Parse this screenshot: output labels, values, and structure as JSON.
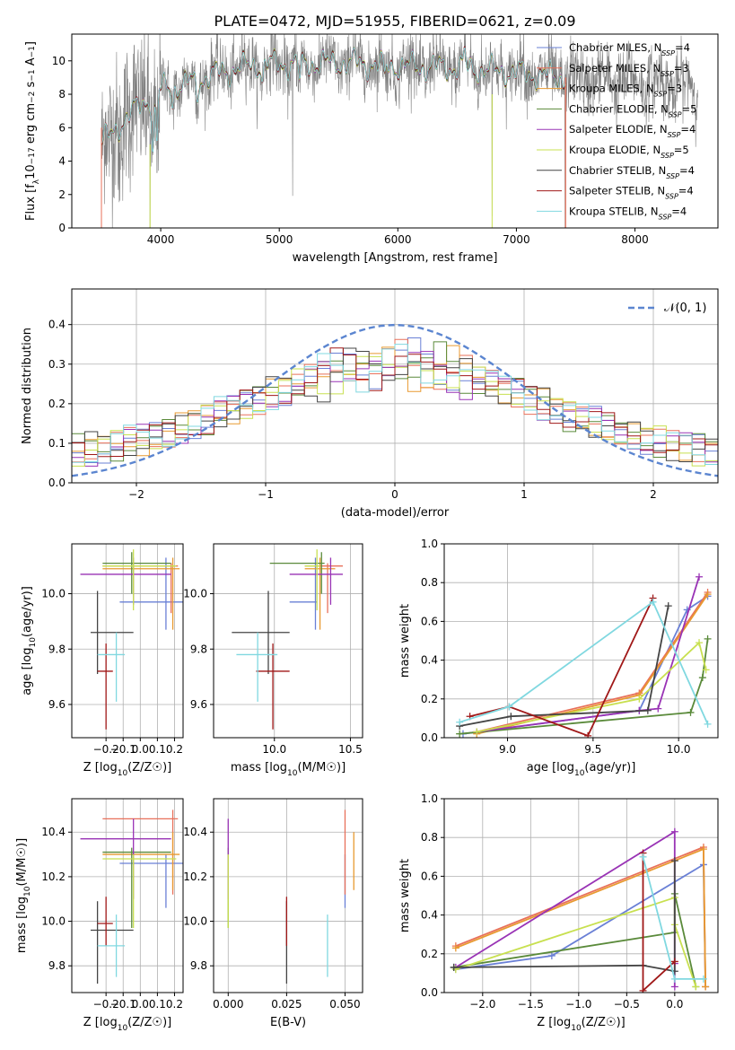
{
  "title": "PLATE=0472, MJD=51955, FIBERID=0621, z=0.09",
  "colors": {
    "Chabrier MILES": "#6a80d6",
    "Salpeter MILES": "#e8705a",
    "Kroupa MILES": "#e89a30",
    "Chabrier ELODIE": "#5a8a3a",
    "Salpeter ELODIE": "#9933b5",
    "Kroupa ELODIE": "#c8e050",
    "Chabrier STELIB": "#444444",
    "Salpeter STELIB": "#a01818",
    "Kroupa STELIB": "#80d8e0",
    "data": "#808080",
    "gauss": "#5b85d0"
  },
  "chart_data": [
    {
      "type": "line",
      "xlabel": "wavelength [Angstrom, rest frame]",
      "ylabel": "Flux [fλ10⁻¹⁷ erg cm⁻² s⁻¹ A⁻¹]",
      "xlim": [
        3250,
        8700
      ],
      "ylim": [
        0,
        11.6
      ],
      "xticks": [
        4000,
        5000,
        6000,
        7000,
        8000
      ],
      "yticks": [
        0,
        2,
        4,
        6,
        8,
        10
      ],
      "legend": [
        {
          "name": "Chabrier MILES",
          "text": "Chabrier MILES, N",
          "sub": "SSP",
          "n": "=4"
        },
        {
          "name": "Salpeter MILES",
          "text": "Salpeter MILES, N",
          "sub": "SSP",
          "n": "=3"
        },
        {
          "name": "Kroupa MILES",
          "text": "Kroupa MILES, N",
          "sub": "SSP",
          "n": "=3"
        },
        {
          "name": "Chabrier ELODIE",
          "text": "Chabrier ELODIE, N",
          "sub": "SSP",
          "n": "=5"
        },
        {
          "name": "Salpeter ELODIE",
          "text": "Salpeter ELODIE, N",
          "sub": "SSP",
          "n": "=4"
        },
        {
          "name": "Kroupa ELODIE",
          "text": "Kroupa ELODIE, N",
          "sub": "SSP",
          "n": "=5"
        },
        {
          "name": "Chabrier STELIB",
          "text": "Chabrier STELIB, N",
          "sub": "SSP",
          "n": "=4"
        },
        {
          "name": "Salpeter STELIB",
          "text": "Salpeter STELIB, N",
          "sub": "SSP",
          "n": "=4"
        },
        {
          "name": "Kroupa STELIB",
          "text": "Kroupa STELIB, N",
          "sub": "SSP",
          "n": "=4"
        }
      ],
      "legend_loc": "right",
      "data_range": [
        3500,
        8530
      ],
      "model_range": [
        3500,
        7420
      ],
      "continuum": [
        [
          3500,
          5.0
        ],
        [
          3700,
          6.5
        ],
        [
          3900,
          7.8
        ],
        [
          4000,
          8.3
        ],
        [
          4200,
          8.6
        ],
        [
          4500,
          9.3
        ],
        [
          4800,
          9.8
        ],
        [
          5000,
          9.8
        ],
        [
          5500,
          9.9
        ],
        [
          6000,
          9.7
        ],
        [
          6500,
          9.6
        ],
        [
          7000,
          9.3
        ],
        [
          7400,
          9.0
        ],
        [
          8000,
          8.8
        ],
        [
          8500,
          8.5
        ]
      ],
      "absorptions": [
        [
          3934,
          4.0
        ],
        [
          3968,
          3.5
        ],
        [
          4101,
          1.0
        ],
        [
          4305,
          1.2
        ],
        [
          4861,
          1.0
        ],
        [
          5175,
          1.3
        ],
        [
          5890,
          1.0
        ],
        [
          6563,
          -0.8
        ]
      ],
      "spikes": [
        [
          3500,
          0
        ],
        [
          3550,
          -4
        ],
        [
          3650,
          -5
        ],
        [
          3910,
          -8
        ],
        [
          5112,
          -9.8
        ],
        [
          6795,
          -9.6
        ],
        [
          7410,
          -9.5
        ]
      ]
    },
    {
      "type": "histogram",
      "xlabel": "(data-model)/error",
      "ylabel": "Normed distribution",
      "xlim": [
        -2.5,
        2.5
      ],
      "ylim": [
        0,
        0.49
      ],
      "xticks": [
        -2,
        -1,
        0,
        1,
        2
      ],
      "yticks": [
        0.0,
        0.1,
        0.2,
        0.3,
        0.4
      ],
      "bin_width": 0.1,
      "grid": true,
      "legend": "𝒩(0, 1)",
      "legend_loc": "top-right",
      "gauss": {
        "mu": 0,
        "sigma": 1
      }
    },
    {
      "type": "scatter",
      "xlabel": "Z [log10(Z/Z☉)]",
      "ylabel": "age  [log10(age/yr)]",
      "xlim": [
        -0.4,
        0.25
      ],
      "ylim": [
        9.48,
        10.18
      ],
      "xticks": [
        -0.2,
        -0.1,
        0.0,
        0.1,
        0.2
      ],
      "yticks": [
        9.6,
        9.8,
        10.0
      ],
      "grid": true,
      "points": [
        {
          "name": "Chabrier MILES",
          "x": 0.15,
          "y": 9.97,
          "xl": -0.12,
          "xh": 0.25,
          "yl": 9.87,
          "yh": 10.13
        },
        {
          "name": "Salpeter MILES",
          "x": 0.18,
          "y": 10.1,
          "xl": -0.22,
          "xh": 0.22,
          "yl": 9.93,
          "yh": 10.11
        },
        {
          "name": "Kroupa MILES",
          "x": 0.19,
          "y": 10.09,
          "xl": -0.22,
          "xh": 0.23,
          "yl": 9.87,
          "yh": 10.13
        },
        {
          "name": "Chabrier ELODIE",
          "x": -0.05,
          "y": 10.11,
          "xl": -0.22,
          "xh": 0.18,
          "yl": 10.0,
          "yh": 10.15
        },
        {
          "name": "Salpeter ELODIE",
          "x": -0.04,
          "y": 10.07,
          "xl": -0.35,
          "xh": 0.18,
          "yl": 9.96,
          "yh": 10.13
        },
        {
          "name": "Kroupa ELODIE",
          "x": -0.04,
          "y": 10.1,
          "xl": -0.22,
          "xh": 0.21,
          "yl": 9.94,
          "yh": 10.16
        },
        {
          "name": "Chabrier STELIB",
          "x": -0.25,
          "y": 9.86,
          "xl": -0.29,
          "xh": -0.04,
          "yl": 9.71,
          "yh": 10.01
        },
        {
          "name": "Salpeter STELIB",
          "x": -0.2,
          "y": 9.72,
          "xl": -0.25,
          "xh": -0.16,
          "yl": 9.51,
          "yh": 9.82
        },
        {
          "name": "Kroupa STELIB",
          "x": -0.14,
          "y": 9.78,
          "xl": -0.25,
          "xh": -0.09,
          "yl": 9.61,
          "yh": 9.86
        }
      ]
    },
    {
      "type": "scatter",
      "xlabel": "mass [log10(M/M☉)]",
      "ylabel": "",
      "xlim": [
        9.6,
        10.58
      ],
      "ylim": [
        9.48,
        10.18
      ],
      "xticks": [
        10.0,
        10.5
      ],
      "yticks": [
        9.6,
        9.8,
        10.0
      ],
      "grid": true,
      "points": [
        {
          "name": "Chabrier MILES",
          "x": 10.27,
          "y": 9.97,
          "xl": 10.1,
          "xh": 10.28,
          "yl": 9.87,
          "yh": 10.13
        },
        {
          "name": "Salpeter MILES",
          "x": 10.35,
          "y": 10.1,
          "xl": 10.2,
          "xh": 10.45,
          "yl": 9.93,
          "yh": 10.11
        },
        {
          "name": "Kroupa MILES",
          "x": 10.3,
          "y": 10.09,
          "xl": 10.2,
          "xh": 10.4,
          "yl": 9.87,
          "yh": 10.13
        },
        {
          "name": "Chabrier ELODIE",
          "x": 10.31,
          "y": 10.11,
          "xl": 9.97,
          "xh": 10.33,
          "yl": 10.0,
          "yh": 10.15
        },
        {
          "name": "Salpeter ELODIE",
          "x": 10.37,
          "y": 10.07,
          "xl": 10.1,
          "xh": 10.45,
          "yl": 9.96,
          "yh": 10.13
        },
        {
          "name": "Kroupa ELODIE",
          "x": 10.28,
          "y": 10.1,
          "xl": 10.2,
          "xh": 10.3,
          "yl": 9.94,
          "yh": 10.16
        },
        {
          "name": "Chabrier STELIB",
          "x": 9.96,
          "y": 9.86,
          "xl": 9.72,
          "xh": 10.1,
          "yl": 9.71,
          "yh": 10.01
        },
        {
          "name": "Salpeter STELIB",
          "x": 9.99,
          "y": 9.72,
          "xl": 9.88,
          "xh": 10.1,
          "yl": 9.51,
          "yh": 9.82
        },
        {
          "name": "Kroupa STELIB",
          "x": 9.89,
          "y": 9.78,
          "xl": 9.75,
          "xh": 10.02,
          "yl": 9.61,
          "yh": 9.86
        }
      ]
    },
    {
      "type": "line",
      "xlabel": "age  [log10(age/yr)]",
      "ylabel": "mass weight",
      "xlim": [
        8.63,
        10.23
      ],
      "ylim": [
        0,
        1.0
      ],
      "xticks": [
        9.0,
        9.5,
        10.0
      ],
      "yticks": [
        0.0,
        0.2,
        0.4,
        0.6,
        0.8,
        1.0
      ],
      "grid": true,
      "series": [
        {
          "name": "Chabrier MILES",
          "x": [
            8.74,
            9.77,
            10.05,
            10.17
          ],
          "y": [
            0.02,
            0.14,
            0.66,
            0.73
          ]
        },
        {
          "name": "Salpeter MILES",
          "x": [
            8.82,
            9.77,
            10.17
          ],
          "y": [
            0.03,
            0.23,
            0.75
          ]
        },
        {
          "name": "Kroupa MILES",
          "x": [
            8.82,
            9.77,
            10.17
          ],
          "y": [
            0.02,
            0.22,
            0.74
          ]
        },
        {
          "name": "Chabrier ELODIE",
          "x": [
            8.72,
            10.07,
            10.14,
            10.17
          ],
          "y": [
            0.02,
            0.13,
            0.31,
            0.51
          ]
        },
        {
          "name": "Salpeter ELODIE",
          "x": [
            8.82,
            9.77,
            9.88,
            10.12
          ],
          "y": [
            0.03,
            0.14,
            0.15,
            0.83
          ]
        },
        {
          "name": "Kroupa ELODIE",
          "x": [
            8.82,
            9.77,
            10.12,
            10.16
          ],
          "y": [
            0.03,
            0.2,
            0.49,
            0.35
          ]
        },
        {
          "name": "Chabrier STELIB",
          "x": [
            8.72,
            9.02,
            9.82,
            9.94
          ],
          "y": [
            0.06,
            0.11,
            0.14,
            0.68
          ]
        },
        {
          "name": "Salpeter STELIB",
          "x": [
            8.78,
            9.01,
            9.47,
            9.85
          ],
          "y": [
            0.11,
            0.16,
            0.01,
            0.72
          ]
        },
        {
          "name": "Kroupa STELIB",
          "x": [
            8.72,
            9.01,
            9.85,
            10.17
          ],
          "y": [
            0.08,
            0.16,
            0.7,
            0.07
          ]
        }
      ]
    },
    {
      "type": "scatter",
      "xlabel": "Z [log10(Z/Z☉)]",
      "ylabel": "mass [log10(M/M☉)]",
      "xlim": [
        -0.4,
        0.25
      ],
      "ylim": [
        9.68,
        10.55
      ],
      "xticks": [
        -0.2,
        -0.1,
        0.0,
        0.1,
        0.2
      ],
      "yticks": [
        9.8,
        10.0,
        10.2,
        10.4
      ],
      "grid": true,
      "points": [
        {
          "name": "Chabrier MILES",
          "x": 0.15,
          "y": 10.26,
          "xl": -0.12,
          "xh": 0.25,
          "yl": 10.06,
          "yh": 10.3
        },
        {
          "name": "Salpeter MILES",
          "x": 0.19,
          "y": 10.46,
          "xl": -0.22,
          "xh": 0.22,
          "yl": 10.12,
          "yh": 10.5
        },
        {
          "name": "Kroupa MILES",
          "x": 0.19,
          "y": 10.3,
          "xl": -0.22,
          "xh": 0.23,
          "yl": 10.14,
          "yh": 10.4
        },
        {
          "name": "Chabrier ELODIE",
          "x": -0.05,
          "y": 10.31,
          "xl": -0.22,
          "xh": 0.18,
          "yl": 9.97,
          "yh": 10.33
        },
        {
          "name": "Salpeter ELODIE",
          "x": -0.04,
          "y": 10.37,
          "xl": -0.35,
          "xh": 0.18,
          "yl": 10.1,
          "yh": 10.46
        },
        {
          "name": "Kroupa ELODIE",
          "x": -0.04,
          "y": 10.28,
          "xl": -0.22,
          "xh": 0.21,
          "yl": 9.97,
          "yh": 10.3
        },
        {
          "name": "Chabrier STELIB",
          "x": -0.25,
          "y": 9.96,
          "xl": -0.29,
          "xh": -0.04,
          "yl": 9.72,
          "yh": 10.09
        },
        {
          "name": "Salpeter STELIB",
          "x": -0.2,
          "y": 9.99,
          "xl": -0.25,
          "xh": -0.16,
          "yl": 9.89,
          "yh": 10.11
        },
        {
          "name": "Kroupa STELIB",
          "x": -0.14,
          "y": 9.89,
          "xl": -0.25,
          "xh": -0.09,
          "yl": 9.75,
          "yh": 10.03
        }
      ]
    },
    {
      "type": "scatter",
      "xlabel": "E(B-V)",
      "ylabel": "",
      "xlim": [
        -0.005,
        0.046
      ],
      "ylim": [
        9.68,
        10.55
      ],
      "xticks": [
        0.0,
        0.02,
        0.04
      ],
      "xticklabels": [
        "0.000",
        "0.025",
        "0.050"
      ],
      "yticks": [
        9.8,
        10.0,
        10.2,
        10.4
      ],
      "grid": true,
      "points": [
        {
          "name": "Chabrier MILES",
          "x": 0.04,
          "y": 10.26,
          "yl": 10.06,
          "yh": 10.3
        },
        {
          "name": "Salpeter MILES",
          "x": 0.04,
          "y": 10.46,
          "yl": 10.12,
          "yh": 10.5
        },
        {
          "name": "Kroupa MILES",
          "x": 0.043,
          "y": 10.3,
          "yl": 10.14,
          "yh": 10.4
        },
        {
          "name": "Chabrier ELODIE",
          "x": 0.0,
          "y": 10.31,
          "yl": 9.97,
          "yh": 10.33
        },
        {
          "name": "Salpeter ELODIE",
          "x": 0.0,
          "y": 10.37,
          "yl": 10.1,
          "yh": 10.46
        },
        {
          "name": "Kroupa ELODIE",
          "x": 0.0,
          "y": 10.28,
          "yl": 9.97,
          "yh": 10.3
        },
        {
          "name": "Chabrier STELIB",
          "x": 0.02,
          "y": 9.96,
          "yl": 9.72,
          "yh": 10.09
        },
        {
          "name": "Salpeter STELIB",
          "x": 0.02,
          "y": 9.99,
          "yl": 9.89,
          "yh": 10.11
        },
        {
          "name": "Kroupa STELIB",
          "x": 0.034,
          "y": 9.89,
          "yl": 9.75,
          "yh": 10.03
        }
      ]
    },
    {
      "type": "line",
      "xlabel": "Z [log10(Z/Z☉)]",
      "ylabel": "mass weight",
      "xlim": [
        -2.4,
        0.45
      ],
      "ylim": [
        0,
        1.0
      ],
      "xticks": [
        -2.0,
        -1.5,
        -1.0,
        -0.5,
        0.0
      ],
      "yticks": [
        0.0,
        0.2,
        0.4,
        0.6,
        0.8,
        1.0
      ],
      "grid": true,
      "series": [
        {
          "name": "Chabrier MILES",
          "x": [
            -2.28,
            -1.28,
            0.3,
            0.32
          ],
          "y": [
            0.12,
            0.19,
            0.66,
            0.03
          ]
        },
        {
          "name": "Salpeter MILES",
          "x": [
            -2.28,
            0.3,
            0.32
          ],
          "y": [
            0.24,
            0.75,
            0.03
          ]
        },
        {
          "name": "Kroupa MILES",
          "x": [
            -2.28,
            0.3,
            0.32
          ],
          "y": [
            0.23,
            0.74,
            0.03
          ]
        },
        {
          "name": "Chabrier ELODIE",
          "x": [
            -2.3,
            0.0,
            0.0,
            0.22
          ],
          "y": [
            0.13,
            0.31,
            0.51,
            0.03
          ]
        },
        {
          "name": "Salpeter ELODIE",
          "x": [
            -2.28,
            0.0,
            0.0,
            0.0
          ],
          "y": [
            0.13,
            0.83,
            0.15,
            0.03
          ]
        },
        {
          "name": "Kroupa ELODIE",
          "x": [
            -2.28,
            0.0,
            0.0,
            0.22
          ],
          "y": [
            0.12,
            0.49,
            0.35,
            0.03
          ]
        },
        {
          "name": "Chabrier STELIB",
          "x": [
            -2.3,
            -0.33,
            0.0,
            0.0
          ],
          "y": [
            0.13,
            0.14,
            0.11,
            0.68
          ]
        },
        {
          "name": "Salpeter STELIB",
          "x": [
            -0.33,
            -0.33,
            0.0
          ],
          "y": [
            0.72,
            0.01,
            0.16
          ]
        },
        {
          "name": "Kroupa STELIB",
          "x": [
            -0.33,
            0.0,
            0.3
          ],
          "y": [
            0.7,
            0.07,
            0.07
          ]
        }
      ]
    }
  ]
}
